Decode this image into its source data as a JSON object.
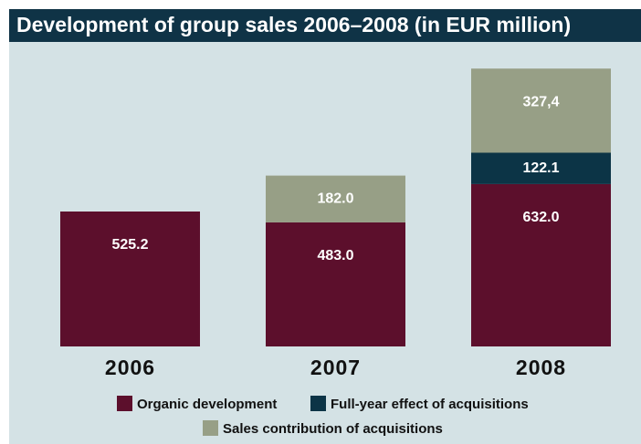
{
  "chart_data": {
    "type": "bar",
    "stacked": true,
    "title": "Development of group sales 2006–2008 (in EUR million)",
    "categories": [
      "2006",
      "2007",
      "2008"
    ],
    "series": [
      {
        "name": "Organic development",
        "color": "#5c0f2c",
        "values": [
          525.2,
          483.0,
          632.0
        ],
        "value_labels": [
          "525.2",
          "483.0",
          "632.0"
        ]
      },
      {
        "name": "Full-year effect of acquisitions",
        "color": "#0c3446",
        "values": [
          null,
          null,
          122.1
        ],
        "value_labels": [
          null,
          null,
          "122.1"
        ]
      },
      {
        "name": "Sales contribution of acquisitions",
        "color": "#979f86",
        "values": [
          null,
          182.0,
          327.4
        ],
        "value_labels": [
          null,
          "182.0",
          "327,4"
        ]
      }
    ]
  }
}
